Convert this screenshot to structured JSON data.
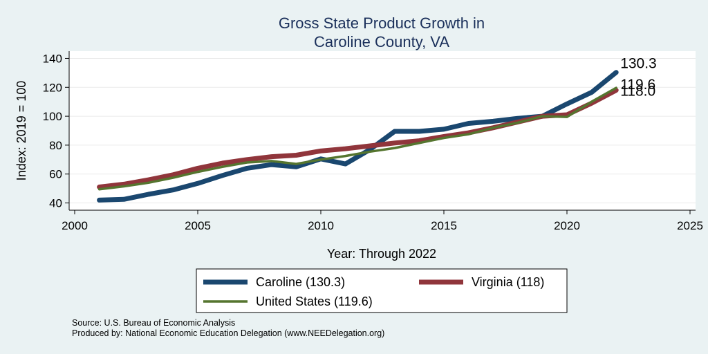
{
  "chart_data": {
    "type": "line",
    "title": [
      "Gross State Product Growth in",
      "Caroline County, VA"
    ],
    "xlabel": "Year: Through 2022",
    "ylabel": "Index: 2019 = 100",
    "xlim": [
      2000,
      2025
    ],
    "ylim": [
      35,
      145
    ],
    "xticks": [
      2000,
      2005,
      2010,
      2015,
      2020,
      2025
    ],
    "yticks": [
      40,
      60,
      80,
      100,
      120,
      140
    ],
    "grid": true,
    "legend_position": "bottom",
    "x": [
      2001,
      2002,
      2003,
      2004,
      2005,
      2006,
      2007,
      2008,
      2009,
      2010,
      2011,
      2012,
      2013,
      2014,
      2015,
      2016,
      2017,
      2018,
      2019,
      2020,
      2021,
      2022
    ],
    "series": [
      {
        "name": "Caroline (130.3)",
        "color": "#1a476f",
        "width": 7,
        "values": [
          42,
          42.5,
          46,
          49,
          53.5,
          59,
          64,
          66.5,
          65,
          70.5,
          67,
          77,
          89.5,
          89.5,
          91,
          95,
          96.5,
          98.5,
          100,
          108.5,
          116.5,
          130.3
        ],
        "end_label": "130.3"
      },
      {
        "name": "Virginia (118)",
        "color": "#90353b",
        "width": 7,
        "values": [
          51,
          53,
          56,
          59.5,
          64,
          67.5,
          70,
          72,
          73,
          76,
          77.5,
          79.5,
          81.5,
          83,
          86,
          88.5,
          92,
          96,
          100,
          101,
          109,
          118
        ],
        "end_label": "118.0"
      },
      {
        "name": "United States (119.6)",
        "color": "#55752f",
        "width": 3.5,
        "values": [
          49.5,
          51.5,
          54,
          57.5,
          61.5,
          65,
          68,
          69,
          67,
          70,
          72.5,
          75.5,
          78,
          81.5,
          85,
          87.5,
          92,
          95.5,
          100,
          99.5,
          110,
          119.6
        ],
        "end_label": "119.6"
      }
    ]
  },
  "notes": {
    "source": "Source: U.S. Bureau of Economic Analysis",
    "produced_by": "Produced by: National Economic Education Delegation (www.NEEDelegation.org)"
  }
}
